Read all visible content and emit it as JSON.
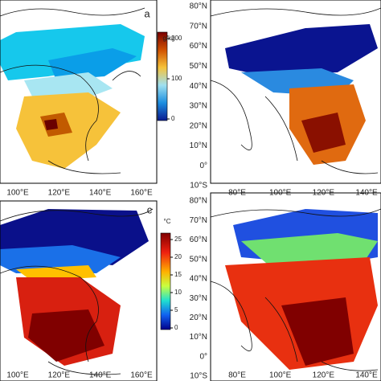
{
  "panels": [
    {
      "label": "a",
      "colorbar": {
        "unit": "g/kg",
        "ticks": [
          200,
          100,
          0
        ]
      },
      "lon_labels": [
        "100°E",
        "120°E",
        "140°E",
        "160°E"
      ]
    },
    {
      "lat_labels": [
        "80°N",
        "70°N",
        "60°N",
        "50°N",
        "40°N",
        "30°N",
        "20°N",
        "10°N",
        "0°",
        "10°S"
      ],
      "lon_labels": [
        "80°E",
        "100°E",
        "120°E",
        "140°E"
      ]
    },
    {
      "label": "c",
      "colorbar": {
        "unit": "°C",
        "ticks": [
          25,
          20,
          15,
          10,
          5,
          0
        ]
      },
      "lon_labels": [
        "100°E",
        "120°E",
        "140°E",
        "160°E"
      ]
    },
    {
      "lat_labels": [
        "80°N",
        "70°N",
        "60°N",
        "50°N",
        "40°N",
        "30°N",
        "20°N",
        "10°N",
        "0°",
        "10°S"
      ],
      "lon_labels": [
        "80°E",
        "100°E",
        "120°E",
        "140°E"
      ]
    }
  ]
}
